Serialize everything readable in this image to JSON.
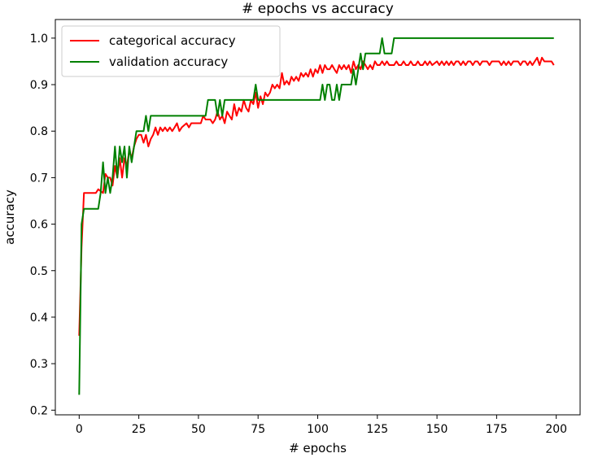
{
  "chart_data": {
    "type": "line",
    "title": "# epochs vs accuracy",
    "xlabel": "# epochs",
    "ylabel": "accuracy",
    "xlim": [
      -10,
      210
    ],
    "ylim": [
      0.19,
      1.04
    ],
    "xticks": [
      0,
      25,
      50,
      75,
      100,
      125,
      150,
      175,
      200
    ],
    "yticks": [
      0.2,
      0.3,
      0.4,
      0.5,
      0.6,
      0.7,
      0.8,
      0.9,
      1.0
    ],
    "xtick_labels": [
      "0",
      "25",
      "50",
      "75",
      "100",
      "125",
      "150",
      "175",
      "200"
    ],
    "ytick_labels": [
      "0.2",
      "0.3",
      "0.4",
      "0.5",
      "0.6",
      "0.7",
      "0.8",
      "0.9",
      "1.0"
    ],
    "grid": false,
    "legend_position": "top-left",
    "series": [
      {
        "name": "categorical accuracy",
        "color": "#ff0000",
        "points": [
          [
            0,
            0.36
          ],
          [
            1,
            0.55
          ],
          [
            2,
            0.667
          ],
          [
            3,
            0.667
          ],
          [
            5,
            0.667
          ],
          [
            7,
            0.667
          ],
          [
            8,
            0.675
          ],
          [
            10,
            0.667
          ],
          [
            11,
            0.708
          ],
          [
            12,
            0.7
          ],
          [
            13,
            0.7
          ],
          [
            14,
            0.683
          ],
          [
            15,
            0.725
          ],
          [
            16,
            0.7
          ],
          [
            17,
            0.742
          ],
          [
            18,
            0.7
          ],
          [
            19,
            0.742
          ],
          [
            20,
            0.725
          ],
          [
            21,
            0.758
          ],
          [
            22,
            0.742
          ],
          [
            23,
            0.767
          ],
          [
            24,
            0.783
          ],
          [
            25,
            0.792
          ],
          [
            26,
            0.792
          ],
          [
            27,
            0.775
          ],
          [
            28,
            0.792
          ],
          [
            29,
            0.767
          ],
          [
            30,
            0.783
          ],
          [
            31,
            0.792
          ],
          [
            32,
            0.808
          ],
          [
            33,
            0.792
          ],
          [
            34,
            0.808
          ],
          [
            35,
            0.8
          ],
          [
            36,
            0.808
          ],
          [
            37,
            0.8
          ],
          [
            38,
            0.808
          ],
          [
            39,
            0.8
          ],
          [
            40,
            0.808
          ],
          [
            41,
            0.817
          ],
          [
            42,
            0.8
          ],
          [
            43,
            0.808
          ],
          [
            45,
            0.817
          ],
          [
            46,
            0.808
          ],
          [
            47,
            0.817
          ],
          [
            49,
            0.817
          ],
          [
            51,
            0.817
          ],
          [
            52,
            0.833
          ],
          [
            53,
            0.825
          ],
          [
            55,
            0.825
          ],
          [
            56,
            0.817
          ],
          [
            57,
            0.825
          ],
          [
            58,
            0.842
          ],
          [
            59,
            0.825
          ],
          [
            60,
            0.833
          ],
          [
            61,
            0.817
          ],
          [
            62,
            0.842
          ],
          [
            63,
            0.833
          ],
          [
            64,
            0.825
          ],
          [
            65,
            0.858
          ],
          [
            66,
            0.833
          ],
          [
            67,
            0.85
          ],
          [
            68,
            0.842
          ],
          [
            69,
            0.867
          ],
          [
            70,
            0.85
          ],
          [
            71,
            0.842
          ],
          [
            72,
            0.867
          ],
          [
            73,
            0.858
          ],
          [
            74,
            0.883
          ],
          [
            75,
            0.85
          ],
          [
            76,
            0.875
          ],
          [
            77,
            0.858
          ],
          [
            78,
            0.883
          ],
          [
            79,
            0.875
          ],
          [
            80,
            0.883
          ],
          [
            81,
            0.9
          ],
          [
            82,
            0.892
          ],
          [
            83,
            0.9
          ],
          [
            84,
            0.892
          ],
          [
            85,
            0.925
          ],
          [
            86,
            0.9
          ],
          [
            87,
            0.908
          ],
          [
            88,
            0.9
          ],
          [
            89,
            0.917
          ],
          [
            90,
            0.908
          ],
          [
            91,
            0.917
          ],
          [
            92,
            0.908
          ],
          [
            93,
            0.925
          ],
          [
            94,
            0.917
          ],
          [
            95,
            0.925
          ],
          [
            96,
            0.917
          ],
          [
            97,
            0.933
          ],
          [
            98,
            0.917
          ],
          [
            99,
            0.933
          ],
          [
            100,
            0.925
          ],
          [
            101,
            0.942
          ],
          [
            102,
            0.925
          ],
          [
            103,
            0.942
          ],
          [
            104,
            0.933
          ],
          [
            105,
            0.933
          ],
          [
            106,
            0.942
          ],
          [
            107,
            0.933
          ],
          [
            108,
            0.925
          ],
          [
            109,
            0.942
          ],
          [
            110,
            0.933
          ],
          [
            111,
            0.942
          ],
          [
            112,
            0.933
          ],
          [
            113,
            0.942
          ],
          [
            114,
            0.925
          ],
          [
            115,
            0.95
          ],
          [
            116,
            0.933
          ],
          [
            117,
            0.942
          ],
          [
            118,
            0.933
          ],
          [
            119,
            0.95
          ],
          [
            120,
            0.942
          ],
          [
            121,
            0.933
          ],
          [
            122,
            0.942
          ],
          [
            123,
            0.933
          ],
          [
            124,
            0.95
          ],
          [
            125,
            0.942
          ],
          [
            126,
            0.942
          ],
          [
            127,
            0.95
          ],
          [
            128,
            0.942
          ],
          [
            129,
            0.95
          ],
          [
            130,
            0.942
          ],
          [
            132,
            0.942
          ],
          [
            133,
            0.95
          ],
          [
            134,
            0.942
          ],
          [
            135,
            0.942
          ],
          [
            136,
            0.95
          ],
          [
            137,
            0.942
          ],
          [
            138,
            0.942
          ],
          [
            139,
            0.95
          ],
          [
            140,
            0.942
          ],
          [
            141,
            0.942
          ],
          [
            142,
            0.95
          ],
          [
            143,
            0.942
          ],
          [
            144,
            0.942
          ],
          [
            145,
            0.95
          ],
          [
            146,
            0.942
          ],
          [
            147,
            0.95
          ],
          [
            148,
            0.942
          ],
          [
            150,
            0.95
          ],
          [
            151,
            0.942
          ],
          [
            152,
            0.95
          ],
          [
            153,
            0.942
          ],
          [
            154,
            0.95
          ],
          [
            155,
            0.942
          ],
          [
            156,
            0.95
          ],
          [
            157,
            0.942
          ],
          [
            158,
            0.95
          ],
          [
            159,
            0.95
          ],
          [
            160,
            0.942
          ],
          [
            161,
            0.95
          ],
          [
            162,
            0.942
          ],
          [
            163,
            0.95
          ],
          [
            164,
            0.95
          ],
          [
            165,
            0.942
          ],
          [
            166,
            0.95
          ],
          [
            167,
            0.95
          ],
          [
            168,
            0.942
          ],
          [
            169,
            0.95
          ],
          [
            170,
            0.95
          ],
          [
            171,
            0.95
          ],
          [
            172,
            0.942
          ],
          [
            173,
            0.95
          ],
          [
            174,
            0.95
          ],
          [
            175,
            0.95
          ],
          [
            176,
            0.95
          ],
          [
            177,
            0.942
          ],
          [
            178,
            0.95
          ],
          [
            179,
            0.942
          ],
          [
            180,
            0.95
          ],
          [
            181,
            0.942
          ],
          [
            182,
            0.95
          ],
          [
            183,
            0.95
          ],
          [
            184,
            0.95
          ],
          [
            185,
            0.942
          ],
          [
            186,
            0.95
          ],
          [
            187,
            0.95
          ],
          [
            188,
            0.942
          ],
          [
            189,
            0.95
          ],
          [
            190,
            0.942
          ],
          [
            191,
            0.95
          ],
          [
            192,
            0.958
          ],
          [
            193,
            0.942
          ],
          [
            194,
            0.958
          ],
          [
            195,
            0.95
          ],
          [
            196,
            0.95
          ],
          [
            197,
            0.95
          ],
          [
            198,
            0.95
          ],
          [
            199,
            0.942
          ]
        ]
      },
      {
        "name": "validation accuracy",
        "color": "#008000",
        "points": [
          [
            0,
            0.233
          ],
          [
            1,
            0.6
          ],
          [
            2,
            0.633
          ],
          [
            5,
            0.633
          ],
          [
            8,
            0.633
          ],
          [
            9,
            0.667
          ],
          [
            10,
            0.733
          ],
          [
            11,
            0.667
          ],
          [
            12,
            0.7
          ],
          [
            13,
            0.667
          ],
          [
            14,
            0.7
          ],
          [
            15,
            0.767
          ],
          [
            16,
            0.7
          ],
          [
            17,
            0.767
          ],
          [
            18,
            0.733
          ],
          [
            19,
            0.767
          ],
          [
            20,
            0.7
          ],
          [
            21,
            0.767
          ],
          [
            22,
            0.733
          ],
          [
            23,
            0.767
          ],
          [
            24,
            0.8
          ],
          [
            26,
            0.8
          ],
          [
            27,
            0.8
          ],
          [
            28,
            0.833
          ],
          [
            29,
            0.8
          ],
          [
            30,
            0.833
          ],
          [
            35,
            0.833
          ],
          [
            40,
            0.833
          ],
          [
            45,
            0.833
          ],
          [
            50,
            0.833
          ],
          [
            53,
            0.833
          ],
          [
            54,
            0.867
          ],
          [
            55,
            0.867
          ],
          [
            56,
            0.867
          ],
          [
            57,
            0.867
          ],
          [
            58,
            0.833
          ],
          [
            59,
            0.867
          ],
          [
            60,
            0.833
          ],
          [
            61,
            0.867
          ],
          [
            62,
            0.867
          ],
          [
            65,
            0.867
          ],
          [
            70,
            0.867
          ],
          [
            73,
            0.867
          ],
          [
            74,
            0.9
          ],
          [
            75,
            0.867
          ],
          [
            80,
            0.867
          ],
          [
            85,
            0.867
          ],
          [
            90,
            0.867
          ],
          [
            95,
            0.867
          ],
          [
            100,
            0.867
          ],
          [
            101,
            0.867
          ],
          [
            102,
            0.9
          ],
          [
            103,
            0.867
          ],
          [
            104,
            0.9
          ],
          [
            105,
            0.9
          ],
          [
            106,
            0.867
          ],
          [
            107,
            0.867
          ],
          [
            108,
            0.9
          ],
          [
            109,
            0.867
          ],
          [
            110,
            0.9
          ],
          [
            111,
            0.9
          ],
          [
            112,
            0.9
          ],
          [
            113,
            0.9
          ],
          [
            114,
            0.9
          ],
          [
            115,
            0.933
          ],
          [
            116,
            0.9
          ],
          [
            117,
            0.933
          ],
          [
            118,
            0.967
          ],
          [
            119,
            0.933
          ],
          [
            120,
            0.967
          ],
          [
            124,
            0.967
          ],
          [
            125,
            0.967
          ],
          [
            126,
            0.967
          ],
          [
            127,
            1.0
          ],
          [
            128,
            0.967
          ],
          [
            129,
            0.967
          ],
          [
            130,
            0.967
          ],
          [
            131,
            0.967
          ],
          [
            132,
            1.0
          ],
          [
            140,
            1.0
          ],
          [
            150,
            1.0
          ],
          [
            160,
            1.0
          ],
          [
            170,
            1.0
          ],
          [
            180,
            1.0
          ],
          [
            190,
            1.0
          ],
          [
            199,
            1.0
          ]
        ]
      }
    ]
  }
}
